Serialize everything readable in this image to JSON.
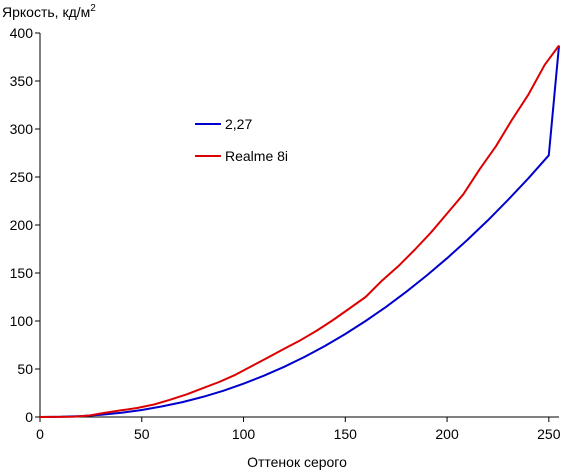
{
  "chart_data": {
    "type": "line",
    "title": "",
    "ylabel": "Яркость, кд/м",
    "ylabel_superscript": "2",
    "xlabel": "Оттенок серого",
    "xlim": [
      0,
      255
    ],
    "ylim": [
      0,
      400
    ],
    "x_ticks": [
      0,
      50,
      100,
      150,
      200,
      250
    ],
    "y_ticks": [
      0,
      50,
      100,
      150,
      200,
      250,
      300,
      350,
      400
    ],
    "grid": false,
    "legend_position": "upper-left-inside",
    "series": [
      {
        "name": "2,27",
        "color": "#0000cc",
        "x": [
          0,
          10,
          20,
          30,
          40,
          50,
          60,
          70,
          80,
          90,
          100,
          110,
          120,
          130,
          140,
          150,
          160,
          170,
          180,
          190,
          200,
          210,
          220,
          230,
          240,
          250,
          255
        ],
        "y": [
          0,
          0.2,
          0.9,
          2.3,
          4.4,
          7.3,
          11.0,
          15.5,
          20.9,
          27.3,
          34.7,
          43.0,
          52.3,
          62.6,
          74.0,
          86.5,
          100.0,
          114.7,
          130.5,
          147.4,
          165.4,
          184.5,
          204.8,
          226.2,
          248.8,
          272.6,
          387
        ]
      },
      {
        "name": "Realme 8i",
        "color": "#dd0000",
        "x": [
          0,
          16,
          24,
          32,
          40,
          48,
          56,
          64,
          72,
          80,
          88,
          96,
          104,
          112,
          120,
          128,
          136,
          144,
          152,
          160,
          168,
          176,
          184,
          192,
          200,
          208,
          216,
          224,
          232,
          240,
          248,
          255
        ],
        "y": [
          0,
          0.2,
          1.5,
          4.5,
          7,
          9.5,
          13,
          18,
          23.5,
          30,
          36.5,
          44,
          53,
          62,
          71,
          80,
          90,
          101,
          113,
          125,
          142,
          157,
          174,
          192,
          212,
          232,
          258,
          282,
          310,
          336,
          367,
          387
        ]
      }
    ]
  }
}
